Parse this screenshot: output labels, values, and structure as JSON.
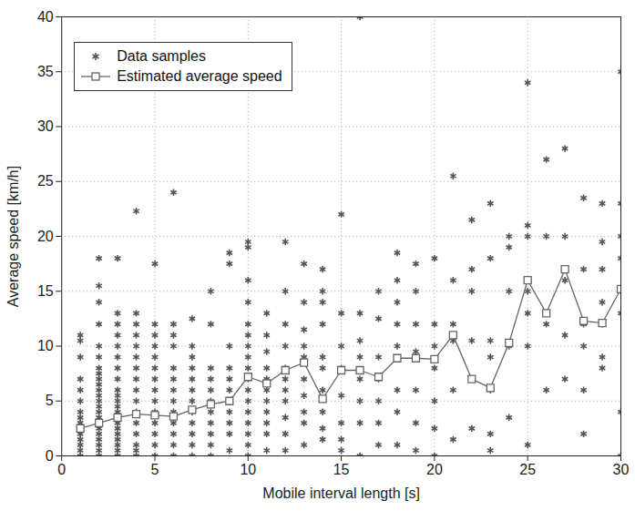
{
  "chart_data": {
    "type": "scatter",
    "x_label": "Mobile interval length [s]",
    "y_label": "Average speed [km/h]",
    "xlim": [
      0,
      30
    ],
    "xticks": [
      0,
      5,
      10,
      15,
      20,
      25,
      30
    ],
    "ylim": [
      0,
      40
    ],
    "yticks": [
      0,
      5,
      10,
      15,
      20,
      25,
      30,
      35,
      40
    ],
    "grid": true,
    "legend": "top-left",
    "series": [
      {
        "name": "Data samples",
        "type": "scatter",
        "marker": "asterisk",
        "color": "#555555",
        "x": [
          1,
          1,
          1,
          1,
          1,
          1,
          1,
          1,
          1,
          1,
          1,
          1,
          1,
          1,
          1,
          2,
          2,
          2,
          2,
          2,
          2,
          2,
          2,
          2,
          2,
          2,
          2,
          2,
          2,
          2,
          2,
          2,
          2,
          2,
          2,
          2,
          2,
          2,
          3,
          3,
          3,
          3,
          3,
          3,
          3,
          3,
          3,
          3,
          3,
          3,
          3,
          3,
          3,
          3,
          3,
          3,
          3,
          3,
          3,
          4,
          4,
          4,
          4,
          4,
          4,
          4,
          4,
          4,
          4,
          4,
          4,
          4,
          4,
          4,
          4,
          5,
          5,
          5,
          5,
          5,
          5,
          5,
          5,
          5,
          5,
          5,
          5,
          5,
          5,
          6,
          6,
          6,
          6,
          6,
          6,
          6,
          6,
          6,
          6,
          6,
          6,
          6,
          7,
          7,
          7,
          7,
          7,
          7,
          7,
          7,
          7,
          7,
          7,
          7,
          8,
          8,
          8,
          8,
          8,
          8,
          8,
          8,
          8,
          8,
          8,
          9,
          9,
          9,
          9,
          9,
          9,
          9,
          9,
          9,
          9,
          9,
          10,
          10,
          10,
          10,
          10,
          10,
          10,
          10,
          10,
          10,
          10,
          10,
          10,
          10,
          10,
          10,
          10,
          11,
          11,
          11,
          11,
          11,
          11,
          11,
          11,
          11,
          11,
          11,
          12,
          12,
          12,
          12,
          12,
          12,
          12,
          12,
          12,
          12,
          12,
          13,
          13,
          13,
          13,
          13,
          13,
          13,
          13,
          13,
          13,
          14,
          14,
          14,
          14,
          14,
          14,
          14,
          14,
          14,
          14,
          15,
          15,
          15,
          15,
          15,
          15,
          15,
          15,
          16,
          16,
          16,
          16,
          16,
          16,
          16,
          16,
          17,
          17,
          17,
          17,
          17,
          17,
          17,
          18,
          18,
          18,
          18,
          18,
          18,
          18,
          18,
          19,
          19,
          19,
          19,
          19,
          19,
          19,
          20,
          20,
          20,
          20,
          20,
          20,
          20,
          21,
          21,
          21,
          21,
          21,
          21,
          22,
          22,
          22,
          22,
          22,
          22,
          23,
          23,
          23,
          23,
          23,
          23,
          23,
          24,
          24,
          24,
          24,
          24,
          25,
          25,
          25,
          25,
          25,
          25,
          25,
          25,
          26,
          26,
          26,
          26,
          26,
          27,
          27,
          27,
          27,
          27,
          28,
          28,
          28,
          28,
          28,
          28,
          29,
          29,
          29,
          29,
          29,
          29,
          29,
          30,
          30,
          30,
          30,
          30,
          30,
          30,
          30
        ],
        "values": [
          0,
          0.5,
          1,
          1.5,
          2,
          2.5,
          3,
          3.5,
          4,
          5,
          6,
          7,
          9,
          10.5,
          11,
          0,
          0.5,
          1,
          1.5,
          2,
          2.5,
          3,
          3.5,
          4,
          4.5,
          5,
          5.5,
          6,
          6.5,
          7,
          7.5,
          8,
          9,
          10,
          12,
          14,
          15.5,
          18,
          0,
          0.5,
          1,
          1.5,
          2,
          2.5,
          3,
          3.5,
          4,
          4.5,
          5,
          5.5,
          6,
          7,
          8,
          9,
          10,
          11,
          12,
          13,
          18,
          0,
          0.5,
          1,
          2,
          3,
          4,
          5,
          6,
          7,
          8,
          9,
          10,
          11,
          12,
          13,
          22.3,
          0,
          1,
          2,
          3,
          4,
          5,
          6,
          7,
          8,
          9,
          10,
          11,
          12,
          17.5,
          0,
          1,
          2,
          3,
          4,
          5,
          6,
          7,
          8,
          10,
          11,
          12,
          24,
          0,
          1,
          2,
          3,
          4,
          5,
          6,
          7,
          8,
          9,
          10,
          12.5,
          0,
          1,
          2,
          3,
          4,
          5,
          6,
          7,
          8,
          12,
          15,
          0.5,
          2,
          3,
          4,
          5,
          6,
          7,
          8,
          10,
          17.5,
          18.5,
          0,
          1,
          2,
          3,
          4,
          5,
          6,
          7,
          8,
          9,
          10,
          11,
          12,
          14,
          16,
          19,
          19.5,
          0.5,
          2,
          3,
          4,
          5,
          6,
          7,
          8,
          9.5,
          11,
          13,
          0.5,
          2,
          3.5,
          5,
          6,
          7,
          8,
          10,
          12,
          15,
          19.5,
          1,
          3,
          4,
          5.5,
          7,
          9,
          10,
          11.5,
          14,
          17.5,
          1.5,
          2.5,
          4,
          6,
          8,
          9,
          12,
          14,
          15,
          17,
          0.5,
          1.5,
          3,
          5.5,
          8,
          10,
          13,
          22,
          0,
          3,
          5,
          7,
          9,
          10.5,
          13,
          40,
          1,
          3,
          5,
          7,
          9,
          12.5,
          15,
          1,
          4,
          6,
          10,
          12,
          14,
          16,
          18.5,
          0.5,
          3,
          6,
          9.5,
          12,
          15,
          17.5,
          0,
          2.5,
          5,
          8,
          10,
          12,
          18,
          1.5,
          6,
          10.5,
          12,
          16,
          25.5,
          2.5,
          7,
          10.5,
          15,
          17,
          21.5,
          0.5,
          2,
          6,
          9,
          10.5,
          18,
          23,
          3.5,
          10,
          15,
          19,
          20,
          1,
          10,
          13,
          15,
          16,
          20,
          21,
          34,
          6,
          12,
          13,
          20,
          27,
          7,
          11,
          16,
          20,
          28,
          2,
          6,
          10,
          12,
          17,
          23.5,
          8,
          9,
          12,
          14,
          17,
          19.5,
          23,
          0,
          4,
          13,
          15,
          18,
          20,
          23,
          35
        ]
      },
      {
        "name": "Estimated average speed",
        "type": "line",
        "marker": "square",
        "color": "#666666",
        "x": [
          1,
          2,
          3,
          4,
          5,
          6,
          7,
          8,
          9,
          10,
          11,
          12,
          13,
          14,
          15,
          16,
          17,
          18,
          19,
          20,
          21,
          22,
          23,
          24,
          25,
          26,
          27,
          28,
          29,
          30
        ],
        "values": [
          2.5,
          3,
          3.5,
          3.8,
          3.7,
          3.6,
          4.2,
          4.7,
          5,
          7.2,
          6.6,
          7.8,
          8.5,
          5.2,
          7.8,
          7.8,
          7.2,
          8.9,
          8.9,
          8.8,
          11,
          7,
          6.2,
          10.3,
          16,
          13,
          17,
          12.3,
          12.1,
          15.2
        ]
      }
    ]
  }
}
